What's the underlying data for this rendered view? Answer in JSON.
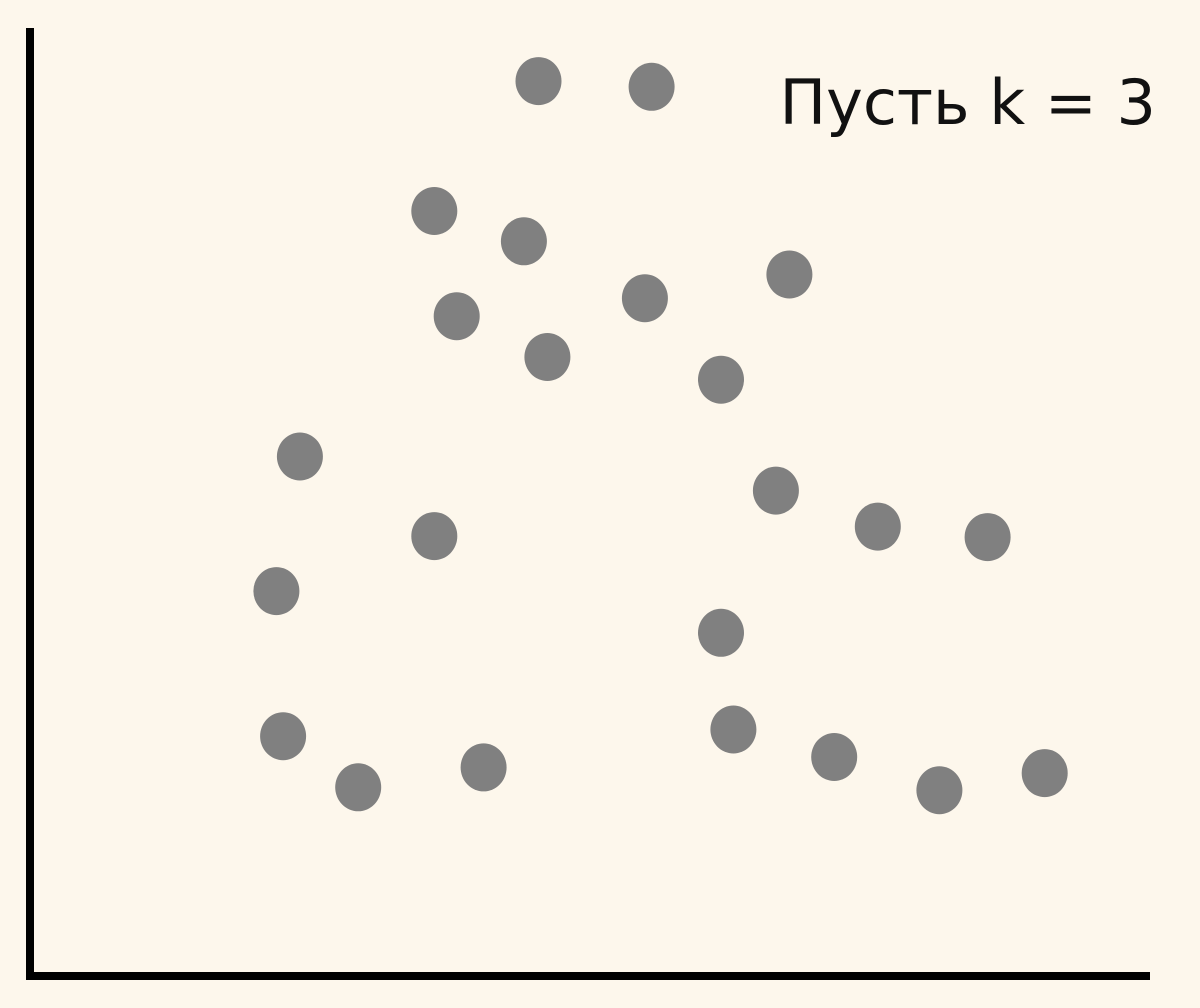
{
  "colors": {
    "background": "#fdf7ec",
    "point": "#808080",
    "axis": "#000000",
    "text": "#111111"
  },
  "chart_data": {
    "type": "scatter",
    "annotation": "Пусть k = 3",
    "title": "",
    "xlabel": "",
    "ylabel": "",
    "xlim": [
      0,
      100
    ],
    "ylim": [
      0,
      100
    ],
    "grid": false,
    "legend": "none",
    "ticks": "none",
    "series": [
      {
        "points": [
          {
            "x": 45.4,
            "y": 94.4
          },
          {
            "x": 55.5,
            "y": 93.8
          },
          {
            "x": 36.1,
            "y": 80.7
          },
          {
            "x": 44.1,
            "y": 77.5
          },
          {
            "x": 67.8,
            "y": 74.0
          },
          {
            "x": 54.9,
            "y": 71.5
          },
          {
            "x": 38.1,
            "y": 69.6
          },
          {
            "x": 46.2,
            "y": 65.3
          },
          {
            "x": 61.7,
            "y": 62.9
          },
          {
            "x": 24.1,
            "y": 54.8
          },
          {
            "x": 66.6,
            "y": 51.2
          },
          {
            "x": 75.7,
            "y": 47.4
          },
          {
            "x": 85.5,
            "y": 46.3
          },
          {
            "x": 36.1,
            "y": 46.4
          },
          {
            "x": 22.0,
            "y": 40.6
          },
          {
            "x": 61.7,
            "y": 36.2
          },
          {
            "x": 62.8,
            "y": 26.0
          },
          {
            "x": 71.8,
            "y": 23.1
          },
          {
            "x": 81.2,
            "y": 19.6
          },
          {
            "x": 90.6,
            "y": 21.4
          },
          {
            "x": 22.6,
            "y": 25.3
          },
          {
            "x": 29.3,
            "y": 19.9
          },
          {
            "x": 40.5,
            "y": 22.0
          }
        ]
      }
    ]
  }
}
